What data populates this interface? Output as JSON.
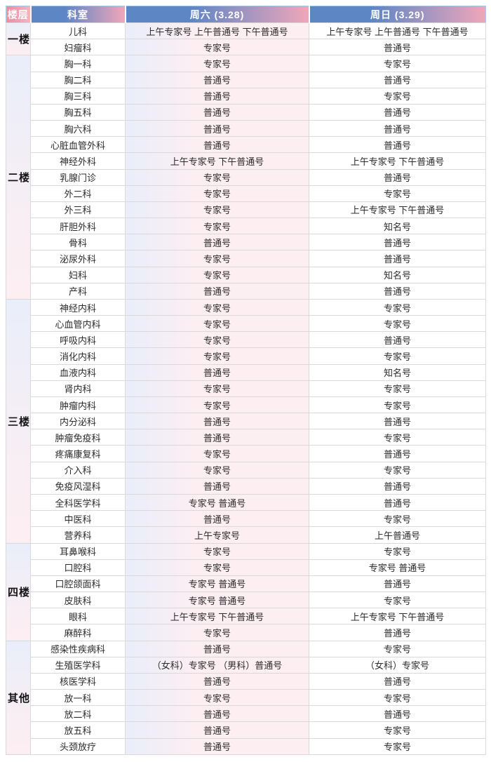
{
  "header": {
    "floor": "楼层",
    "dept": "科室",
    "sat": "周六 (3.28)",
    "sun": "周日 (3.29)"
  },
  "colors": {
    "header_blue": "#5d86c5",
    "header_pink": "#f0a6ba",
    "floor_header_pink": "#e98da1",
    "saturday_cell_pink": "#fdeef2",
    "cell_blue_tint": "#e9eefa",
    "outer_border_blue": "#aac8ea"
  },
  "groups": [
    {
      "floor": "一楼",
      "rows": [
        {
          "dept": "儿科",
          "sat": "上午专家号 上午普通号 下午普通号",
          "sun": "上午专家号 上午普通号 下午普通号"
        },
        {
          "dept": "妇瘤科",
          "sat": "专家号",
          "sun": "普通号"
        }
      ]
    },
    {
      "floor": "二楼",
      "rows": [
        {
          "dept": "胸一科",
          "sat": "专家号",
          "sun": "专家号"
        },
        {
          "dept": "胸二科",
          "sat": "普通号",
          "sun": "普通号"
        },
        {
          "dept": "胸三科",
          "sat": "普通号",
          "sun": "专家号"
        },
        {
          "dept": "胸五科",
          "sat": "普通号",
          "sun": "普通号"
        },
        {
          "dept": "胸六科",
          "sat": "普通号",
          "sun": "普通号"
        },
        {
          "dept": "心脏血管外科",
          "sat": "普通号",
          "sun": "普通号"
        },
        {
          "dept": "神经外科",
          "sat": "上午专家号 下午普通号",
          "sun": "上午专家号 下午普通号"
        },
        {
          "dept": "乳腺门诊",
          "sat": "专家号",
          "sun": "普通号"
        },
        {
          "dept": "外二科",
          "sat": "专家号",
          "sun": "专家号"
        },
        {
          "dept": "外三科",
          "sat": "专家号",
          "sun": "上午专家号 下午普通号"
        },
        {
          "dept": "肝胆外科",
          "sat": "专家号",
          "sun": "知名号"
        },
        {
          "dept": "骨科",
          "sat": "普通号",
          "sun": "普通号"
        },
        {
          "dept": "泌尿外科",
          "sat": "专家号",
          "sun": "普通号"
        },
        {
          "dept": "妇科",
          "sat": "专家号",
          "sun": "知名号"
        },
        {
          "dept": "产科",
          "sat": "普通号",
          "sun": "普通号"
        }
      ]
    },
    {
      "floor": "三楼",
      "rows": [
        {
          "dept": "神经内科",
          "sat": "专家号",
          "sun": "专家号"
        },
        {
          "dept": "心血管内科",
          "sat": "专家号",
          "sun": "专家号"
        },
        {
          "dept": "呼吸内科",
          "sat": "专家号",
          "sun": "普通号"
        },
        {
          "dept": "消化内科",
          "sat": "专家号",
          "sun": "专家号"
        },
        {
          "dept": "血液内科",
          "sat": "普通号",
          "sun": "知名号"
        },
        {
          "dept": "肾内科",
          "sat": "专家号",
          "sun": "专家号"
        },
        {
          "dept": "肿瘤内科",
          "sat": "专家号",
          "sun": "专家号"
        },
        {
          "dept": "内分泌科",
          "sat": "普通号",
          "sun": "普通号"
        },
        {
          "dept": "肿瘤免疫科",
          "sat": "普通号",
          "sun": "专家号"
        },
        {
          "dept": "疼痛康复科",
          "sat": "专家号",
          "sun": "普通号"
        },
        {
          "dept": "介入科",
          "sat": "专家号",
          "sun": "专家号"
        },
        {
          "dept": "免疫风湿科",
          "sat": "普通号",
          "sun": "普通号"
        },
        {
          "dept": "全科医学科",
          "sat": "专家号 普通号",
          "sun": "普通号"
        },
        {
          "dept": "中医科",
          "sat": "普通号",
          "sun": "专家号"
        },
        {
          "dept": "营养科",
          "sat": "上午专家号",
          "sun": "上午普通号"
        }
      ]
    },
    {
      "floor": "四楼",
      "rows": [
        {
          "dept": "耳鼻喉科",
          "sat": "专家号",
          "sun": "专家号"
        },
        {
          "dept": "口腔科",
          "sat": "专家号",
          "sun": "专家号 普通号"
        },
        {
          "dept": "口腔颌面科",
          "sat": "专家号 普通号",
          "sun": "普通号"
        },
        {
          "dept": "皮肤科",
          "sat": "专家号 普通号",
          "sun": "专家号"
        },
        {
          "dept": "眼科",
          "sat": "上午专家号 下午普通号",
          "sun": "上午专家号 下午普通号"
        },
        {
          "dept": "麻醉科",
          "sat": "专家号",
          "sun": "普通号"
        }
      ]
    },
    {
      "floor": "其他",
      "rows": [
        {
          "dept": "感染性疾病科",
          "sat": "普通号",
          "sun": "专家号"
        },
        {
          "dept": "生殖医学科",
          "sat": "（女科）专家号 （男科）普通号",
          "sun": "（女科）专家号"
        },
        {
          "dept": "核医学科",
          "sat": "普通号",
          "sun": "普通号"
        },
        {
          "dept": "放一科",
          "sat": "专家号",
          "sun": "专家号"
        },
        {
          "dept": "放二科",
          "sat": "普通号",
          "sun": "普通号"
        },
        {
          "dept": "放五科",
          "sat": "普通号",
          "sun": "专家号"
        },
        {
          "dept": "头颈放疗",
          "sat": "普通号",
          "sun": "专家号"
        }
      ]
    }
  ]
}
